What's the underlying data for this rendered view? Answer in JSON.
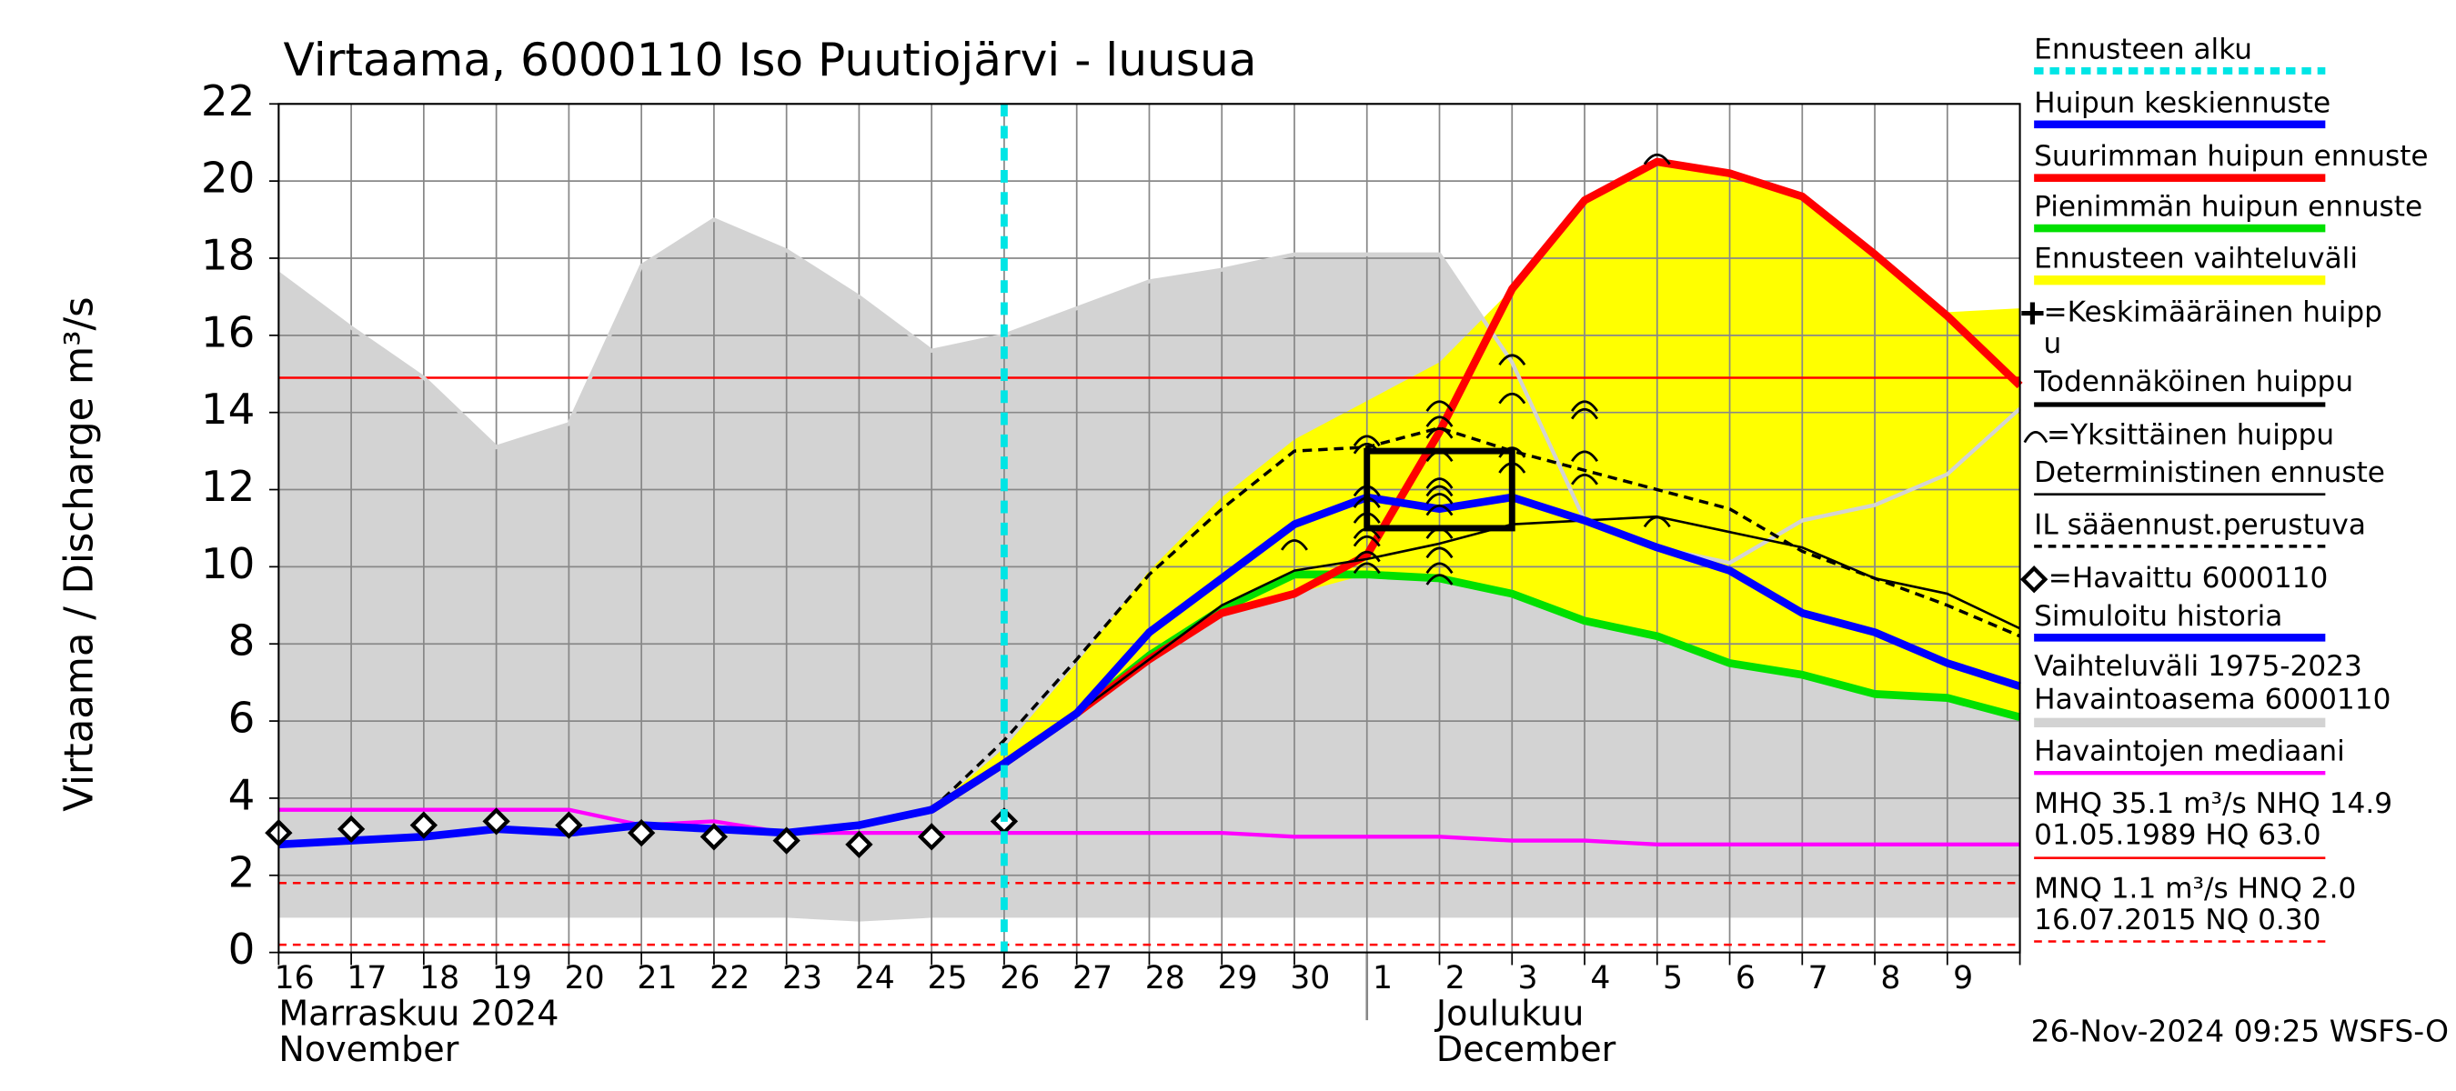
{
  "chart_data": {
    "type": "line",
    "title": "Virtaama, 6000110 Iso Puutiojärvi - luusua",
    "y_label": "Virtaama / Discharge    m³/s",
    "categories": [
      "16",
      "17",
      "18",
      "19",
      "20",
      "21",
      "22",
      "23",
      "24",
      "25",
      "26",
      "27",
      "28",
      "29",
      "30",
      "1",
      "2",
      "3",
      "4",
      "5",
      "6",
      "7",
      "8",
      "9",
      null
    ],
    "month_labels": [
      {
        "at": "16",
        "lines": [
          "Marraskuu 2024",
          "November"
        ]
      },
      {
        "at": "1",
        "lines": [
          "Joulukuu",
          "December"
        ]
      }
    ],
    "ylim": [
      0,
      22
    ],
    "yticks": [
      0,
      2,
      4,
      6,
      8,
      10,
      12,
      14,
      16,
      18,
      20,
      22
    ],
    "grid": true,
    "forecast_start": {
      "name": "Ennusteen alku",
      "at": "26",
      "color": "#00e5e5"
    },
    "range": {
      "name": "Vaihteluväli 1975-2023",
      "name2": " Havaintoasema 6000110",
      "color": "#d3d3d3",
      "upper": [
        17.6,
        16.2,
        14.9,
        13.1,
        13.7,
        17.8,
        19.0,
        18.2,
        17.0,
        15.6,
        16.0,
        16.7,
        17.4,
        17.7,
        18.1,
        18.1,
        18.1,
        15.3,
        11.2,
        10.5,
        10.1,
        11.2,
        11.6,
        12.4,
        14.1
      ],
      "lower": [
        0.9,
        0.9,
        0.9,
        0.9,
        0.9,
        0.9,
        0.9,
        0.9,
        0.8,
        0.9,
        0.9,
        0.9,
        0.9,
        0.9,
        0.9,
        0.9,
        0.9,
        0.9,
        0.9,
        0.9,
        0.9,
        0.9,
        0.9,
        0.9,
        0.9
      ]
    },
    "forecast_range": {
      "name": "Ennusteen vaihteluväli",
      "color": "#ffff00",
      "upper": [
        null,
        null,
        null,
        null,
        null,
        null,
        null,
        null,
        null,
        3.7,
        5.3,
        7.5,
        9.9,
        11.8,
        13.3,
        14.3,
        15.3,
        17.2,
        19.5,
        20.5,
        20.2,
        19.6,
        18.1,
        16.6,
        16.7
      ],
      "lower": [
        null,
        null,
        null,
        null,
        null,
        null,
        null,
        null,
        null,
        3.7,
        4.9,
        6.2,
        7.6,
        8.8,
        9.3,
        9.8,
        9.7,
        9.3,
        8.6,
        8.2,
        7.5,
        7.2,
        6.7,
        6.6,
        6.1
      ]
    },
    "reference_lines": [
      {
        "value": 14.9,
        "color": "#ff0000",
        "dash": false
      },
      {
        "value": 1.8,
        "color": "#ff0000",
        "dash": true
      },
      {
        "value": 0.2,
        "color": "#ff0000",
        "dash": true
      }
    ],
    "series": [
      {
        "name": "Havaintojen mediaani",
        "color": "#ff00ff",
        "width": 2.5,
        "values": [
          3.7,
          3.7,
          3.7,
          3.7,
          3.7,
          3.3,
          3.4,
          3.1,
          3.1,
          3.1,
          3.1,
          3.1,
          3.1,
          3.1,
          3.0,
          3.0,
          3.0,
          2.9,
          2.9,
          2.8,
          2.8,
          2.8,
          2.8,
          2.8,
          2.8
        ]
      },
      {
        "name": "Pienimmän huipun ennuste",
        "color": "#00e000",
        "width": 5,
        "values": [
          null,
          null,
          null,
          null,
          null,
          null,
          null,
          null,
          null,
          3.7,
          4.9,
          6.2,
          7.7,
          8.9,
          9.8,
          9.8,
          9.7,
          9.3,
          8.6,
          8.2,
          7.5,
          7.2,
          6.7,
          6.6,
          6.1
        ]
      },
      {
        "name": "Suurimman huipun ennuste",
        "color": "#ff0000",
        "width": 5,
        "values": [
          null,
          null,
          null,
          null,
          null,
          null,
          null,
          null,
          null,
          3.7,
          4.9,
          6.2,
          7.6,
          8.8,
          9.3,
          10.3,
          13.5,
          17.2,
          19.5,
          20.5,
          20.2,
          19.6,
          18.1,
          16.5,
          14.7
        ]
      },
      {
        "name": "IL sääennust.perustuva",
        "color": "#000000",
        "width": 2,
        "dash": true,
        "values": [
          null,
          null,
          null,
          null,
          null,
          null,
          null,
          null,
          null,
          3.7,
          5.5,
          7.6,
          9.8,
          11.5,
          13.0,
          13.1,
          13.6,
          13.0,
          12.5,
          12.0,
          11.5,
          10.4,
          9.7,
          9.0,
          8.2
        ]
      },
      {
        "name": "Deterministinen ennuste",
        "color": "#000000",
        "width": 1.5,
        "values": [
          null,
          null,
          null,
          null,
          null,
          null,
          null,
          null,
          null,
          3.7,
          4.9,
          6.2,
          7.6,
          9.0,
          9.9,
          10.2,
          10.6,
          11.1,
          11.2,
          11.3,
          10.9,
          10.5,
          9.7,
          9.3,
          8.4
        ]
      },
      {
        "name": "Simuloitu historia",
        "color": "#0000ff",
        "width": 5,
        "values": [
          2.8,
          2.9,
          3.0,
          3.2,
          3.1,
          3.3,
          3.2,
          3.1,
          3.3,
          3.7,
          4.9,
          null,
          null,
          null,
          null,
          null,
          null,
          null,
          null,
          null,
          null,
          null,
          null,
          null,
          null
        ]
      },
      {
        "name": "Huipun keskiennuste",
        "color": "#0000ff",
        "width": 5,
        "values": [
          null,
          null,
          null,
          null,
          null,
          null,
          null,
          null,
          null,
          null,
          4.9,
          6.2,
          8.3,
          9.7,
          11.1,
          11.8,
          11.5,
          11.8,
          11.2,
          10.5,
          9.9,
          8.8,
          8.3,
          7.5,
          6.9
        ]
      }
    ],
    "observed": {
      "name": "=Havaittu 6000110",
      "color": "#000000",
      "values": [
        3.1,
        3.2,
        3.3,
        3.4,
        3.3,
        3.1,
        3.0,
        2.9,
        2.8,
        3.0,
        3.4,
        null,
        null,
        null,
        null,
        null,
        null,
        null,
        null,
        null,
        null,
        null,
        null,
        null,
        null
      ]
    },
    "peaks": {
      "name": "=Yksittäinen huippu",
      "color": "#000000",
      "x": [
        "30",
        "1",
        "1",
        "1",
        "1",
        "1",
        "1",
        "1",
        "1",
        "1",
        "2",
        "2",
        "2",
        "2",
        "2",
        "2",
        "2",
        "2",
        "2",
        "2",
        "2",
        "2",
        "3",
        "3",
        "3",
        "3",
        "4",
        "4",
        "4",
        "4",
        "5",
        "5"
      ],
      "values": [
        10.6,
        13.3,
        13.1,
        12.0,
        11.7,
        11.3,
        10.9,
        10.7,
        10.3,
        10.0,
        14.2,
        13.8,
        13.5,
        12.9,
        12.2,
        12.0,
        11.8,
        11.5,
        10.9,
        10.4,
        10.0,
        9.7,
        15.4,
        14.4,
        13.0,
        12.6,
        14.2,
        14.0,
        12.9,
        12.3,
        20.6,
        11.2
      ]
    },
    "probable_peak": {
      "name": "Todennäköinen huippu",
      "from": "1",
      "to": "3",
      "low": 11.0,
      "high": 13.0,
      "color": "#000000"
    },
    "mean_peak": {
      "lines": [
        "=Keskimääräinen huipp",
        "u"
      ]
    },
    "stats": [
      "MHQ 35.1 m³/s NHQ 14.9",
      "01.05.1989 HQ 63.0",
      "MNQ  1.1 m³/s HNQ  2.0",
      "16.07.2015 NQ 0.30"
    ],
    "footer": "26-Nov-2024 09:25 WSFS-O"
  }
}
